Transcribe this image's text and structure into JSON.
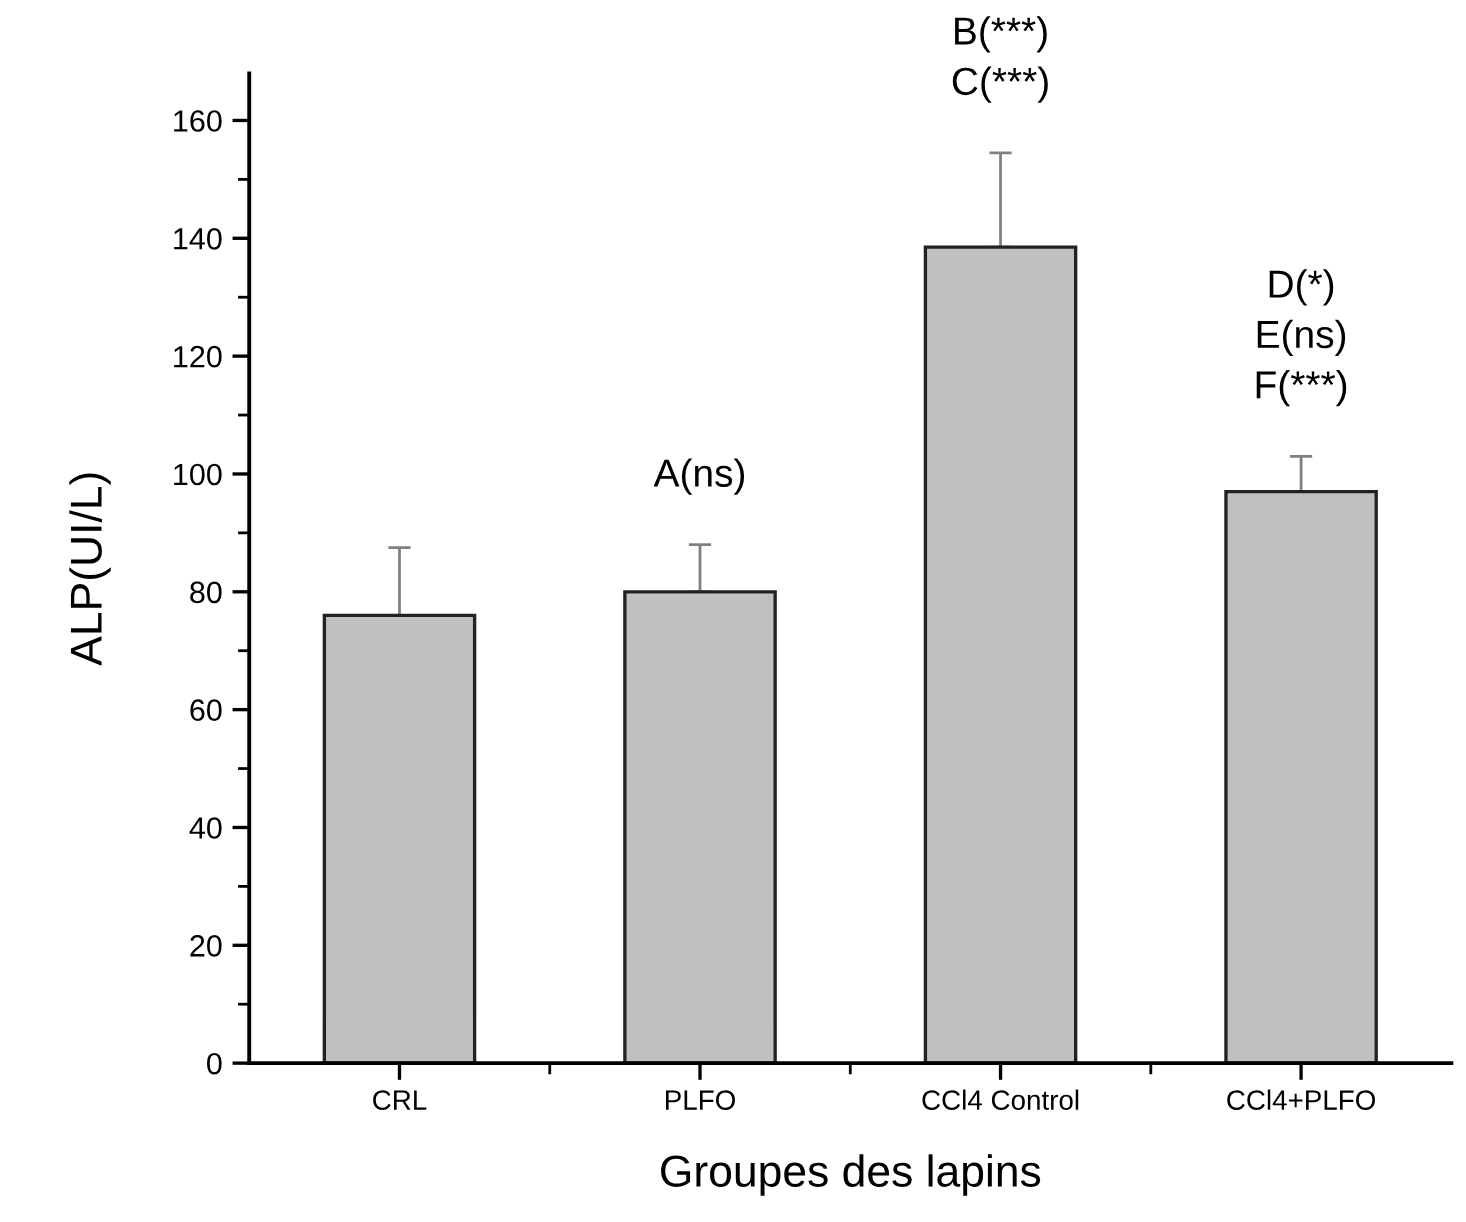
{
  "chart_data": {
    "type": "bar",
    "xlabel": "Groupes des lapins",
    "ylabel": "ALP(UI/L)",
    "categories": [
      "CRL",
      "PLFO",
      "CCl4 Control",
      "CCl4+PLFO"
    ],
    "values": [
      76,
      80,
      138.5,
      97
    ],
    "errors": [
      [
        76,
        87.5
      ],
      [
        80,
        88
      ],
      [
        138.5,
        154.5
      ],
      [
        97,
        103
      ]
    ],
    "color": "#c0c0c0",
    "ylim": [
      0,
      168
    ],
    "yticks": [
      0,
      {
        "value": 10,
        "label": null
      },
      20,
      {
        "value": 30,
        "label": null
      },
      40,
      {
        "value": 50,
        "label": null
      },
      60,
      {
        "value": 70,
        "label": null
      },
      80,
      {
        "value": 90,
        "label": null
      },
      100,
      {
        "value": 110,
        "label": null
      },
      120,
      {
        "value": 130,
        "label": null
      },
      140,
      {
        "value": 150,
        "label": null
      },
      160
    ],
    "grid": false,
    "legend": false,
    "annotations": [
      "A(ns)",
      "B(***)\nC(***)",
      "D(*)\nE(ns)\nF(***)"
    ]
  }
}
